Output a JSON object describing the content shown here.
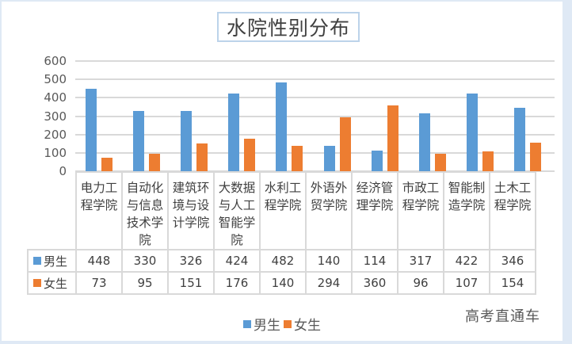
{
  "chart_data": {
    "type": "bar",
    "title": "水院性别分布",
    "xlabel": "",
    "ylabel": "",
    "ylim": [
      0,
      600
    ],
    "yticks": [
      0,
      100,
      200,
      300,
      400,
      500,
      600
    ],
    "grid": true,
    "legend_position": "bottom",
    "categories": [
      "电力工程学院",
      "自动化与信息技术学院",
      "建筑环境与设计学院",
      "大数据与人工智能学院",
      "水利工程学院",
      "外语外贸学院",
      "经济管理学院",
      "市政工程学院",
      "智能制造学院",
      "土木工程学院"
    ],
    "category_labels_wrapped": [
      [
        "电力工",
        "程学院"
      ],
      [
        "自动化",
        "与信息",
        "技术学",
        "院"
      ],
      [
        "建筑环",
        "境与设",
        "计学院"
      ],
      [
        "大数据",
        "与人工",
        "智能学",
        "院"
      ],
      [
        "水利工",
        "程学院"
      ],
      [
        "外语外",
        "贸学院"
      ],
      [
        "经济管",
        "理学院"
      ],
      [
        "市政工",
        "程学院"
      ],
      [
        "智能制",
        "造学院"
      ],
      [
        "土木工",
        "程学院"
      ]
    ],
    "series": [
      {
        "name": "男生",
        "color": "#5b9bd5",
        "values": [
          448,
          330,
          326,
          424,
          482,
          140,
          114,
          317,
          422,
          346
        ]
      },
      {
        "name": "女生",
        "color": "#ed7d31",
        "values": [
          73,
          95,
          151,
          176,
          140,
          294,
          360,
          96,
          107,
          154
        ]
      }
    ]
  },
  "legend": {
    "items": [
      {
        "label": "男生",
        "color": "#5b9bd5"
      },
      {
        "label": "女生",
        "color": "#ed7d31"
      }
    ]
  },
  "watermark": "高考直通车",
  "colors": {
    "male": "#5b9bd5",
    "female": "#ed7d31",
    "grid": "#d9d9d9",
    "frame": "#dfe9f5",
    "title_border": "#bcd3ea"
  }
}
